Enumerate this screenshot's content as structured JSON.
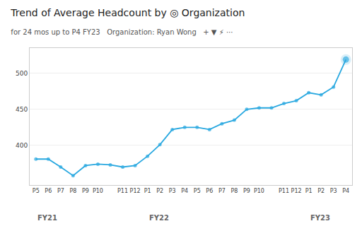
{
  "chart_data": {
    "type": "line",
    "title": "Trend of Average Headcount by ◎ Organization",
    "subtitle": "for 24 mos up to P4 FY23   Organization: Ryan Wong   + ▼ ⚡ ⋯",
    "categories": [
      "P5",
      "P6",
      "P7",
      "P8",
      "P9",
      "P10",
      null,
      "P11",
      "P12",
      "P1",
      "P2",
      "P3",
      "P4",
      "P5",
      "P6",
      "P7",
      "P8",
      "P9",
      "P10",
      null,
      "P11",
      "P12",
      "P1",
      "P2",
      "P3",
      "P4"
    ],
    "values": [
      381,
      381,
      370,
      358,
      372,
      374,
      373,
      370,
      372,
      385,
      401,
      422,
      425,
      425,
      422,
      430,
      435,
      450,
      452,
      452,
      458,
      462,
      473,
      470,
      481,
      519
    ],
    "annotations": [
      {
        "text": "FY21",
        "x": 0
      },
      {
        "text": "FY22",
        "x": 9
      },
      {
        "text": "FY23",
        "x": 22
      }
    ],
    "color": "#29a8e0",
    "marker": "circle",
    "ylim": [
      345,
      535
    ],
    "yticks": [
      400,
      450,
      500
    ],
    "grid": true
  }
}
